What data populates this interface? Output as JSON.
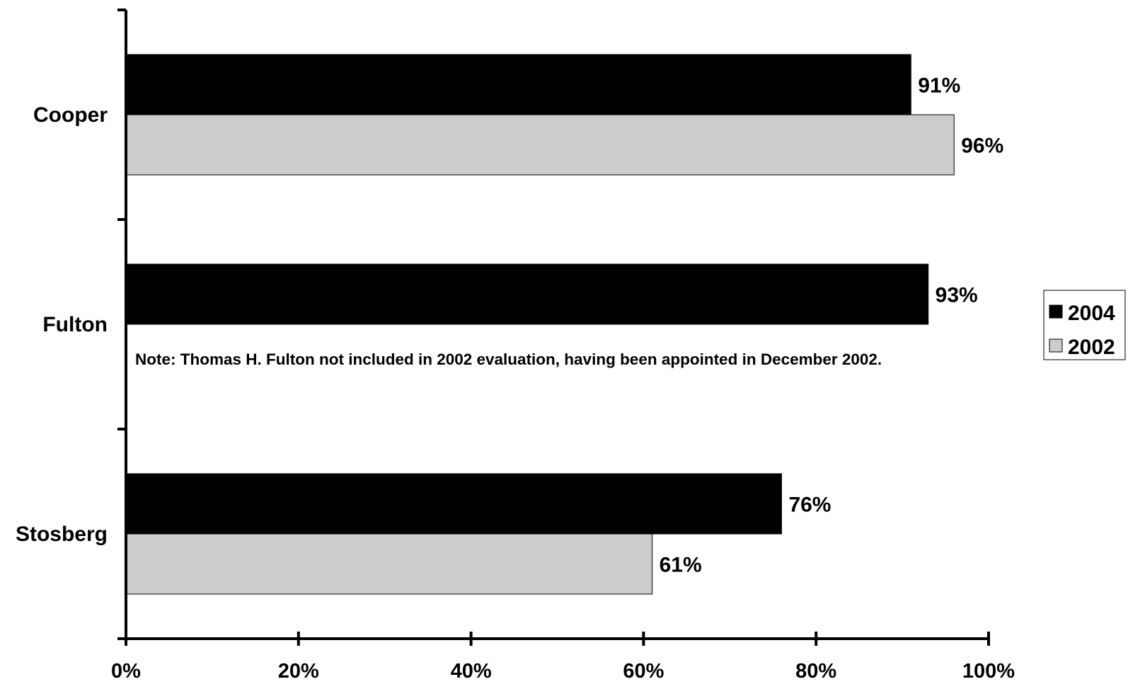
{
  "chart_data": {
    "type": "bar",
    "orientation": "horizontal",
    "categories": [
      "Cooper",
      "Fulton",
      "Stosberg"
    ],
    "series": [
      {
        "name": "2004",
        "values": [
          91,
          93,
          76
        ],
        "labels": [
          "91%",
          "93%",
          "76%"
        ],
        "color": "#000000"
      },
      {
        "name": "2002",
        "values": [
          96,
          null,
          61
        ],
        "labels": [
          "96%",
          "",
          "61%"
        ],
        "color": "#cccccc"
      }
    ],
    "xlim": [
      0,
      100
    ],
    "x_ticks": [
      0,
      20,
      40,
      60,
      80,
      100
    ],
    "x_tick_labels": [
      "0%",
      "20%",
      "40%",
      "60%",
      "80%",
      "100%"
    ],
    "title": "",
    "xlabel": "",
    "ylabel": "",
    "grid": false,
    "legend_position": "right",
    "annotation": "Note:  Thomas H. Fulton not included in 2002 evaluation, having been appointed in December 2002."
  }
}
